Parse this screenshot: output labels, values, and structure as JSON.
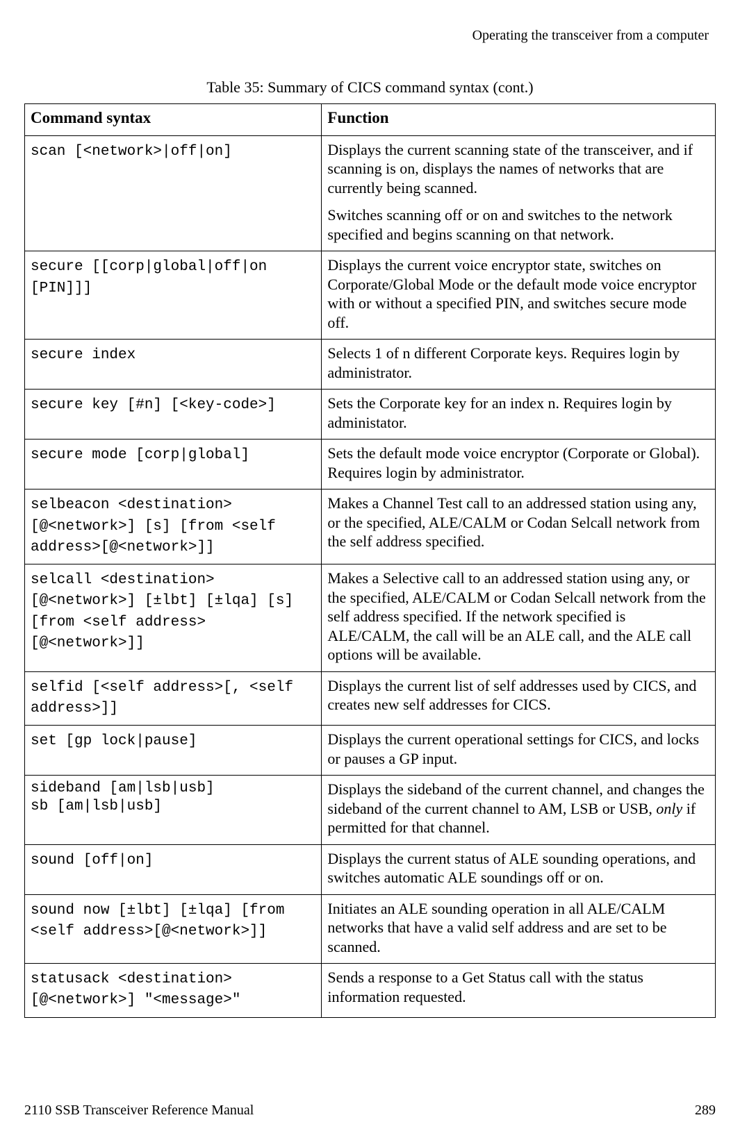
{
  "header": {
    "section_title": "Operating the transceiver from a computer"
  },
  "table": {
    "title": "Table 35:   Summary of CICS command syntax (cont.)",
    "columns": {
      "syntax": "Command syntax",
      "function": "Function"
    },
    "rows": [
      {
        "syntax": "scan [<network>|off|on]",
        "func1": "Displays the current scanning state of the transceiver, and if scanning is on, displays the names of networks that are currently being scanned.",
        "func2": "Switches scanning off or on and switches to the network specified and begins scanning on that network."
      },
      {
        "syntax": "secure [[corp|global|off|on [PIN]]]",
        "func1": "Displays the current voice encryptor state, switches on Corporate/Global Mode or the default mode voice encryptor with or without a specified PIN, and switches secure mode off."
      },
      {
        "syntax": "secure index",
        "func1": "Selects 1 of n different Corporate keys. Requires login by administrator."
      },
      {
        "syntax": "secure key [#n] [<key-code>]",
        "func1": "Sets the Corporate key for an index n. Requires login by administator."
      },
      {
        "syntax": "secure mode [corp|global]",
        "func1": "Sets the default mode voice encryptor (Corporate or Global). Requires login by administrator."
      },
      {
        "syntax": "selbeacon <destination>[@<network>] [s] [from <self address>[@<network>]]",
        "func1": "Makes a Channel Test call to an addressed station using any, or the specified, ALE/CALM or Codan Selcall network from the self address specified."
      },
      {
        "syntax": "selcall <destination>[@<network>] [±lbt] [±lqa] [s] [from <self address>[@<network>]]",
        "func1": "Makes a Selective call to an addressed station using any, or the specified, ALE/CALM or Codan Selcall network from the self address specified. If the network specified is ALE/CALM, the call will be an ALE call, and the ALE call options will be available."
      },
      {
        "syntax": "selfid [<self address>[, <self address>]]",
        "func1": "Displays the current list of self addresses used by CICS, and creates new self addresses for CICS."
      },
      {
        "syntax": "set [gp lock|pause]",
        "func1": "Displays the current operational settings for CICS, and locks or pauses a GP input."
      },
      {
        "syntax_line1": "sideband [am|lsb|usb]",
        "syntax_line2": "sb [am|lsb|usb]",
        "func_pre": "Displays the sideband of the current channel, and changes the sideband of the current channel to AM, LSB or USB, ",
        "func_italic": "only",
        "func_post": " if permitted for that channel."
      },
      {
        "syntax": "sound [off|on]",
        "func1": "Displays the current status of ALE sounding operations, and switches automatic ALE soundings off or on."
      },
      {
        "syntax": "sound now [±lbt] [±lqa] [from <self address>[@<network>]]",
        "func1": "Initiates an ALE sounding operation in all ALE/CALM networks that have a valid self address and are set to be scanned."
      },
      {
        "syntax": "statusack <destination>[@<network>] \"<message>\"",
        "func1": "Sends a response to a Get Status call with the status information requested."
      }
    ]
  },
  "footer": {
    "manual_title": "2110 SSB Transceiver Reference Manual",
    "page_number": "289"
  }
}
